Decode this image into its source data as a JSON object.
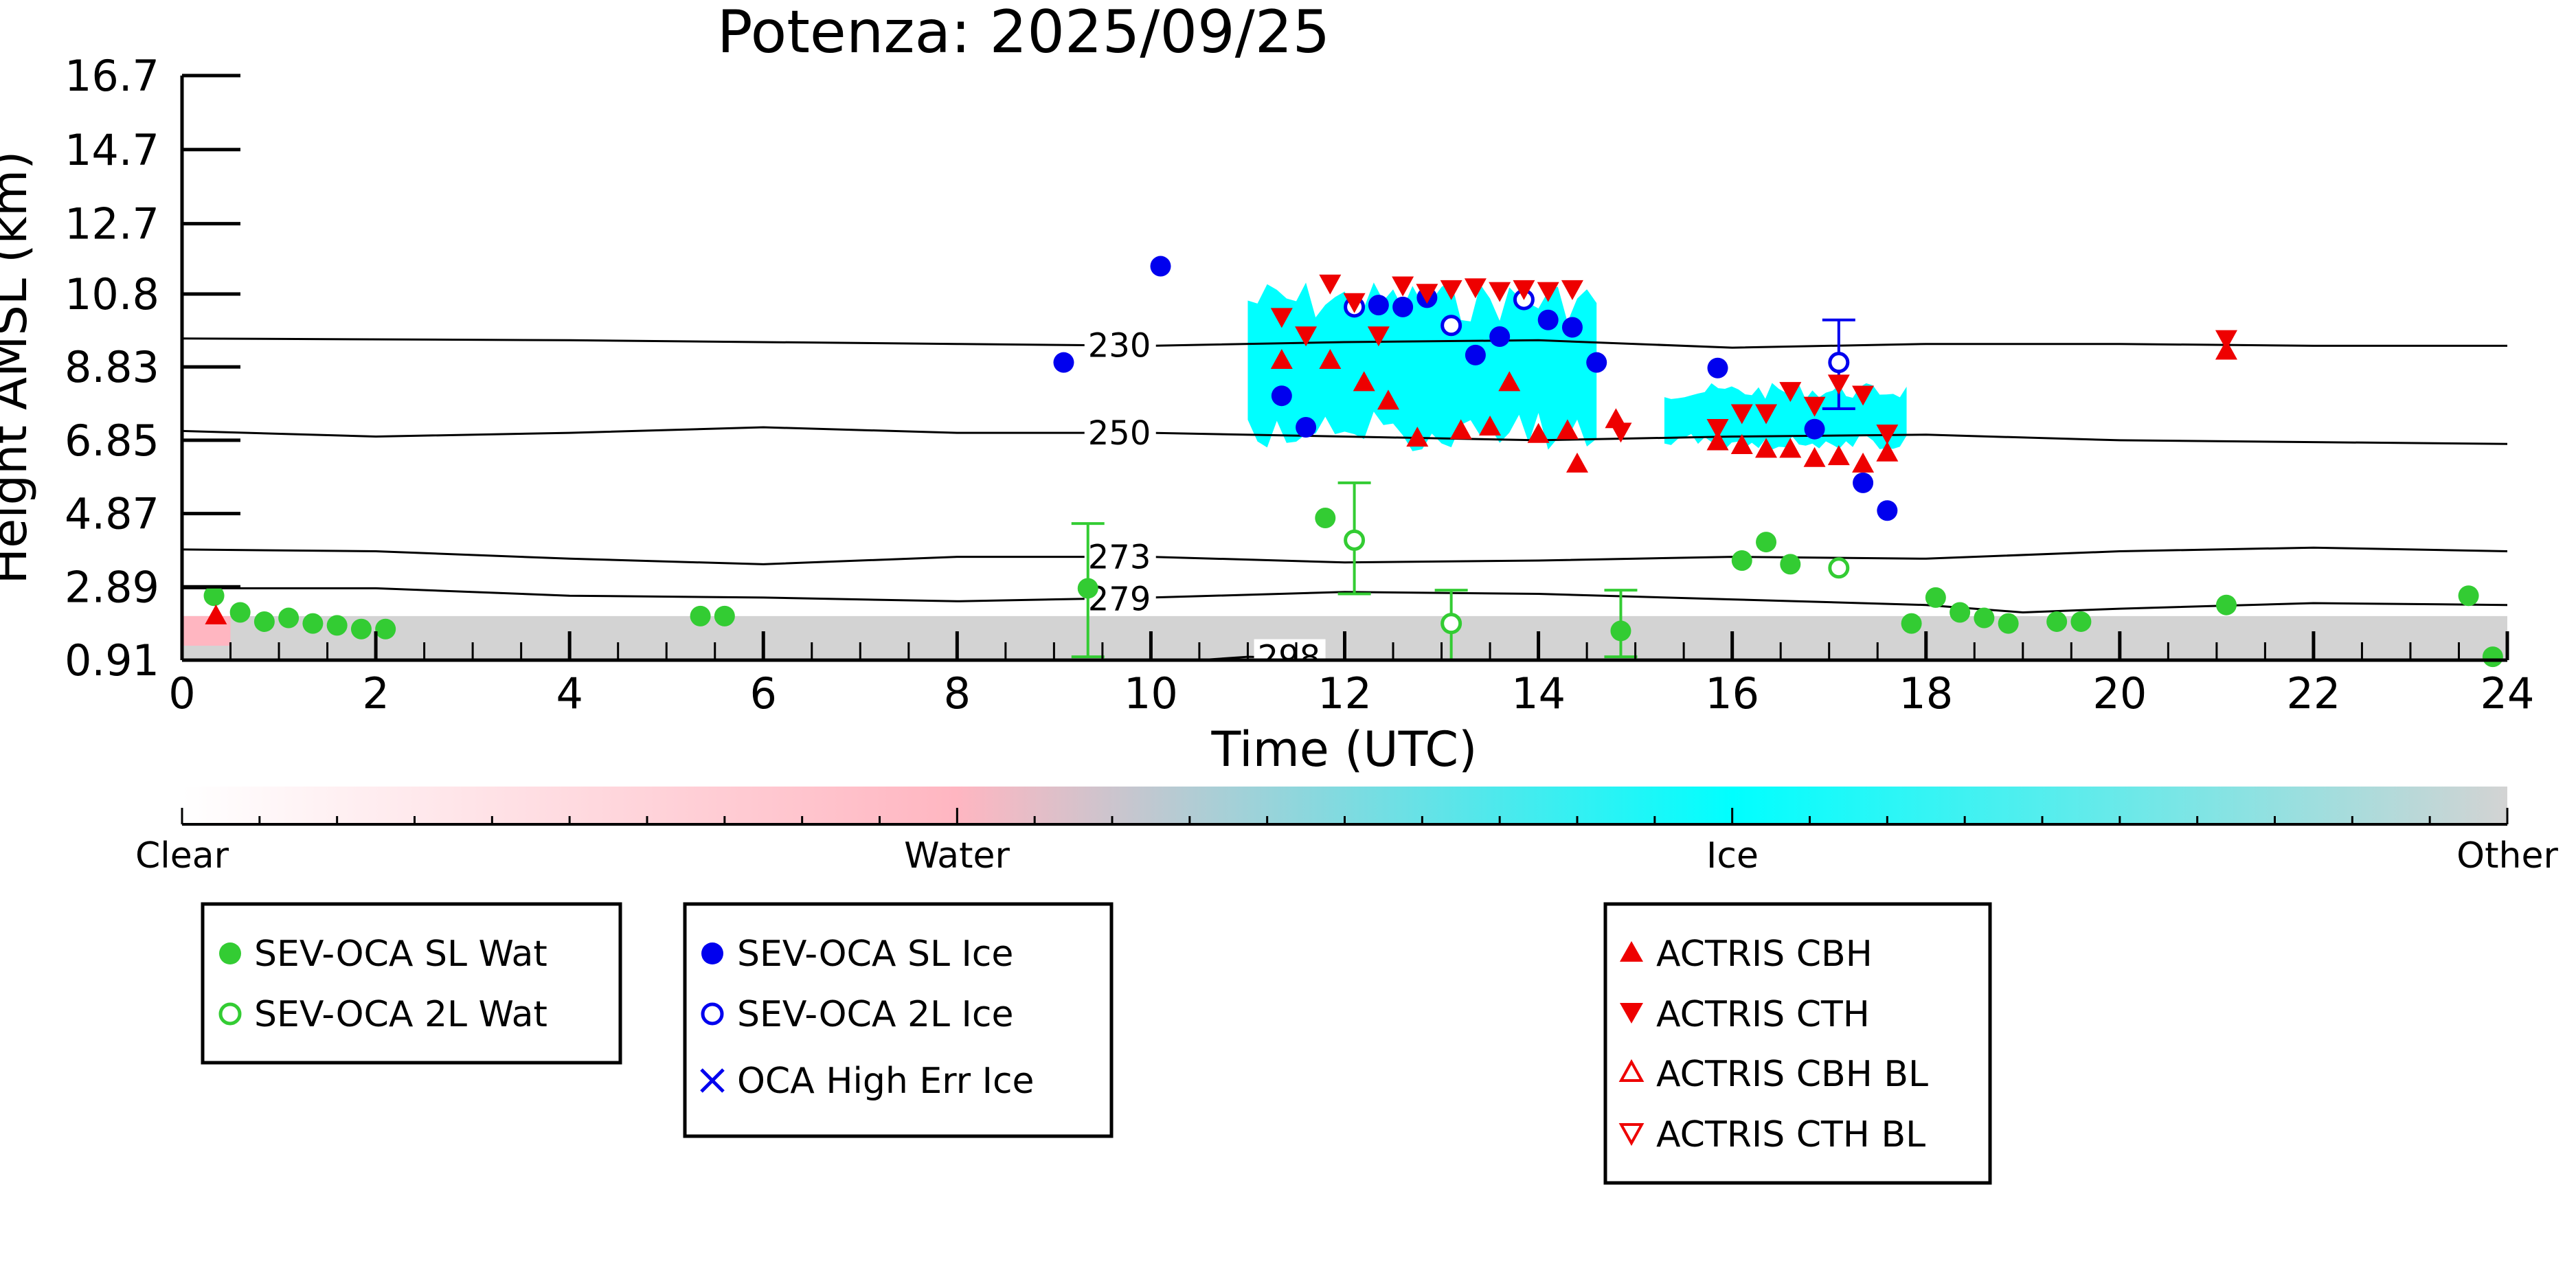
{
  "chart_data": {
    "type": "scatter",
    "title": "Potenza: 2025/09/25",
    "xlabel": "Time (UTC)",
    "ylabel": "Height AMSL (km)",
    "xlim": [
      0,
      24
    ],
    "ylim": [
      0.91,
      16.7
    ],
    "x_ticks": [
      0,
      2,
      4,
      6,
      8,
      10,
      12,
      14,
      16,
      18,
      20,
      22,
      24
    ],
    "y_ticks": [
      0.91,
      2.89,
      4.87,
      6.85,
      8.83,
      10.8,
      12.7,
      14.7,
      16.7
    ],
    "y_tick_labels": [
      "0.91",
      "2.89",
      "4.87",
      "6.85",
      "8.83",
      "10.8",
      "12.7",
      "14.7",
      "16.7"
    ],
    "grid": false,
    "colorbar": {
      "labels": [
        "Clear",
        "Water",
        "Ice",
        "Other"
      ],
      "colors": [
        "#ffffff",
        "#ffb6c1",
        "#00ffff",
        "#d3d3d3"
      ]
    },
    "contours": [
      {
        "label": "230",
        "label_x": 9.35,
        "points": [
          [
            0,
            9.6
          ],
          [
            4,
            9.55
          ],
          [
            8,
            9.45
          ],
          [
            10,
            9.4
          ],
          [
            12,
            9.5
          ],
          [
            14,
            9.55
          ],
          [
            16,
            9.35
          ],
          [
            18,
            9.45
          ],
          [
            20,
            9.45
          ],
          [
            22,
            9.4
          ],
          [
            24,
            9.4
          ]
        ]
      },
      {
        "label": "250",
        "label_x": 9.35,
        "points": [
          [
            0,
            7.1
          ],
          [
            2,
            6.95
          ],
          [
            4,
            7.05
          ],
          [
            6,
            7.2
          ],
          [
            8,
            7.05
          ],
          [
            10,
            7.05
          ],
          [
            12,
            6.95
          ],
          [
            14,
            6.85
          ],
          [
            16,
            6.95
          ],
          [
            18,
            7.0
          ],
          [
            20,
            6.85
          ],
          [
            22,
            6.8
          ],
          [
            24,
            6.75
          ]
        ]
      },
      {
        "label": "273",
        "label_x": 9.35,
        "points": [
          [
            0,
            3.9
          ],
          [
            2,
            3.85
          ],
          [
            4,
            3.65
          ],
          [
            6,
            3.5
          ],
          [
            8,
            3.7
          ],
          [
            10,
            3.7
          ],
          [
            12,
            3.55
          ],
          [
            14,
            3.6
          ],
          [
            16,
            3.7
          ],
          [
            18,
            3.65
          ],
          [
            20,
            3.85
          ],
          [
            22,
            3.95
          ],
          [
            24,
            3.85
          ]
        ]
      },
      {
        "label": "279",
        "label_x": 9.35,
        "points": [
          [
            0,
            2.85
          ],
          [
            2,
            2.85
          ],
          [
            4,
            2.65
          ],
          [
            6,
            2.6
          ],
          [
            8,
            2.5
          ],
          [
            10,
            2.6
          ],
          [
            12,
            2.75
          ],
          [
            14,
            2.7
          ],
          [
            16,
            2.55
          ],
          [
            18,
            2.4
          ],
          [
            19,
            2.2
          ],
          [
            20,
            2.3
          ],
          [
            22,
            2.45
          ],
          [
            24,
            2.4
          ]
        ]
      },
      {
        "label": "298",
        "label_x": 11.1,
        "points": [
          [
            10.5,
            0.91
          ],
          [
            11.0,
            1.0
          ],
          [
            11.8,
            0.95
          ]
        ]
      }
    ],
    "series": [
      {
        "name": "SEV-OCA SL Wat",
        "marker": "filled-circle",
        "color": "#33cc33",
        "points": [
          {
            "x": 0.33,
            "y": 2.65
          },
          {
            "x": 0.6,
            "y": 2.2
          },
          {
            "x": 0.85,
            "y": 1.95
          },
          {
            "x": 1.1,
            "y": 2.05
          },
          {
            "x": 1.35,
            "y": 1.9
          },
          {
            "x": 1.6,
            "y": 1.85
          },
          {
            "x": 1.85,
            "y": 1.75
          },
          {
            "x": 2.1,
            "y": 1.75
          },
          {
            "x": 5.35,
            "y": 2.1
          },
          {
            "x": 5.6,
            "y": 2.1
          },
          {
            "x": 9.35,
            "y": 2.85,
            "err": [
              1.0,
              4.6
            ]
          },
          {
            "x": 11.8,
            "y": 4.75
          },
          {
            "x": 14.85,
            "y": 1.7,
            "err": [
              1.0,
              2.8
            ]
          },
          {
            "x": 16.1,
            "y": 3.6
          },
          {
            "x": 16.35,
            "y": 4.1
          },
          {
            "x": 16.6,
            "y": 3.5
          },
          {
            "x": 17.85,
            "y": 1.9
          },
          {
            "x": 18.1,
            "y": 2.6
          },
          {
            "x": 18.35,
            "y": 2.2
          },
          {
            "x": 18.6,
            "y": 2.05
          },
          {
            "x": 18.85,
            "y": 1.9
          },
          {
            "x": 19.35,
            "y": 1.95
          },
          {
            "x": 19.6,
            "y": 1.95
          },
          {
            "x": 21.1,
            "y": 2.4
          },
          {
            "x": 23.6,
            "y": 2.65
          },
          {
            "x": 23.85,
            "y": 1.0
          }
        ]
      },
      {
        "name": "SEV-OCA 2L Wat",
        "marker": "open-circle",
        "color": "#33cc33",
        "points": [
          {
            "x": 12.1,
            "y": 4.15,
            "err": [
              2.7,
              5.7
            ]
          },
          {
            "x": 13.1,
            "y": 1.9,
            "err": [
              0.91,
              2.8
            ]
          },
          {
            "x": 17.1,
            "y": 3.4
          }
        ]
      },
      {
        "name": "SEV-OCA SL Ice",
        "marker": "filled-circle",
        "color": "#0000ee",
        "points": [
          {
            "x": 9.1,
            "y": 8.95
          },
          {
            "x": 10.1,
            "y": 11.55
          },
          {
            "x": 11.35,
            "y": 8.05
          },
          {
            "x": 11.6,
            "y": 7.2
          },
          {
            "x": 12.35,
            "y": 10.5
          },
          {
            "x": 12.6,
            "y": 10.45
          },
          {
            "x": 12.85,
            "y": 10.7
          },
          {
            "x": 13.35,
            "y": 9.15
          },
          {
            "x": 13.6,
            "y": 9.65
          },
          {
            "x": 14.1,
            "y": 10.1
          },
          {
            "x": 14.35,
            "y": 9.9
          },
          {
            "x": 14.6,
            "y": 8.95
          },
          {
            "x": 15.85,
            "y": 8.8
          },
          {
            "x": 16.85,
            "y": 7.15
          },
          {
            "x": 17.35,
            "y": 5.7
          },
          {
            "x": 17.6,
            "y": 4.95
          }
        ]
      },
      {
        "name": "SEV-OCA 2L Ice",
        "marker": "open-circle",
        "color": "#0000ee",
        "points": [
          {
            "x": 12.1,
            "y": 10.45
          },
          {
            "x": 13.1,
            "y": 9.95
          },
          {
            "x": 13.85,
            "y": 10.65
          },
          {
            "x": 17.1,
            "y": 8.95,
            "err": [
              7.7,
              10.1
            ]
          }
        ]
      },
      {
        "name": "OCA High Err Ice",
        "marker": "x",
        "color": "#0000ee",
        "points": []
      },
      {
        "name": "ACTRIS CBH",
        "marker": "triangle-up",
        "color": "#ee0000",
        "points": [
          {
            "x": 0.35,
            "y": 2.1
          },
          {
            "x": 11.35,
            "y": 9.0
          },
          {
            "x": 11.85,
            "y": 9.0
          },
          {
            "x": 12.2,
            "y": 8.4
          },
          {
            "x": 12.45,
            "y": 7.9
          },
          {
            "x": 12.75,
            "y": 6.9
          },
          {
            "x": 13.2,
            "y": 7.1
          },
          {
            "x": 13.5,
            "y": 7.2
          },
          {
            "x": 13.7,
            "y": 8.4
          },
          {
            "x": 14.0,
            "y": 7.0
          },
          {
            "x": 14.3,
            "y": 7.1
          },
          {
            "x": 14.4,
            "y": 6.2
          },
          {
            "x": 14.8,
            "y": 7.4
          },
          {
            "x": 15.85,
            "y": 6.8
          },
          {
            "x": 16.1,
            "y": 6.7
          },
          {
            "x": 16.35,
            "y": 6.6
          },
          {
            "x": 16.6,
            "y": 6.6
          },
          {
            "x": 16.85,
            "y": 6.35
          },
          {
            "x": 17.1,
            "y": 6.4
          },
          {
            "x": 17.35,
            "y": 6.2
          },
          {
            "x": 17.6,
            "y": 6.5
          },
          {
            "x": 21.1,
            "y": 9.25
          }
        ]
      },
      {
        "name": "ACTRIS CTH",
        "marker": "triangle-down",
        "color": "#ee0000",
        "points": [
          {
            "x": 11.35,
            "y": 10.2
          },
          {
            "x": 11.6,
            "y": 9.7
          },
          {
            "x": 11.85,
            "y": 11.1
          },
          {
            "x": 12.1,
            "y": 10.6
          },
          {
            "x": 12.35,
            "y": 9.7
          },
          {
            "x": 12.6,
            "y": 11.05
          },
          {
            "x": 12.85,
            "y": 10.85
          },
          {
            "x": 13.1,
            "y": 10.95
          },
          {
            "x": 13.35,
            "y": 11.0
          },
          {
            "x": 13.6,
            "y": 10.9
          },
          {
            "x": 13.85,
            "y": 10.95
          },
          {
            "x": 14.1,
            "y": 10.9
          },
          {
            "x": 14.35,
            "y": 10.95
          },
          {
            "x": 14.85,
            "y": 7.1
          },
          {
            "x": 15.85,
            "y": 7.2
          },
          {
            "x": 16.1,
            "y": 7.6
          },
          {
            "x": 16.35,
            "y": 7.6
          },
          {
            "x": 16.6,
            "y": 8.2
          },
          {
            "x": 16.85,
            "y": 7.8
          },
          {
            "x": 17.1,
            "y": 8.4
          },
          {
            "x": 17.35,
            "y": 8.1
          },
          {
            "x": 17.6,
            "y": 7.05
          },
          {
            "x": 21.1,
            "y": 9.6
          }
        ]
      },
      {
        "name": "ACTRIS CBH BL",
        "marker": "open-triangle-up",
        "color": "#ee0000",
        "points": []
      },
      {
        "name": "ACTRIS CTH BL",
        "marker": "open-triangle-down",
        "color": "#ee0000",
        "points": []
      }
    ],
    "ice_cloud_regions": [
      {
        "x_range": [
          11.0,
          14.6
        ],
        "y_range": [
          6.5,
          11.2
        ]
      },
      {
        "x_range": [
          15.3,
          17.8
        ],
        "y_range": [
          6.6,
          8.4
        ]
      }
    ],
    "legend_groups": [
      [
        "SEV-OCA SL Wat",
        "SEV-OCA 2L Wat"
      ],
      [
        "SEV-OCA SL Ice",
        "SEV-OCA 2L Ice",
        "OCA High Err Ice"
      ],
      [
        "ACTRIS CBH",
        "ACTRIS CTH",
        "ACTRIS CBH BL",
        "ACTRIS CTH BL"
      ]
    ]
  }
}
